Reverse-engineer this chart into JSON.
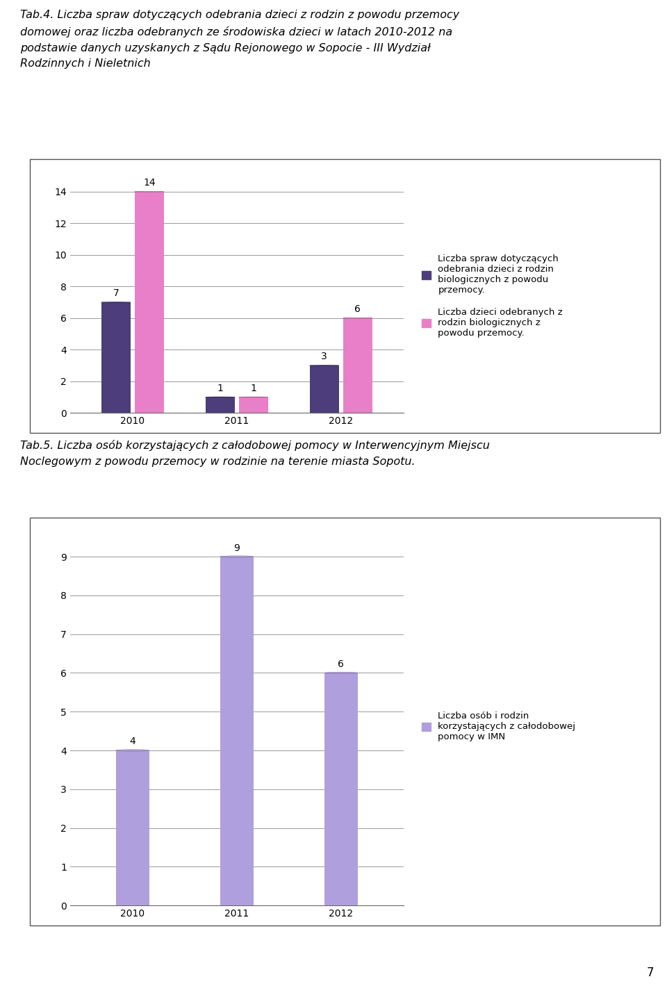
{
  "title1_line1": "Tab.4. Liczba spraw dotyczących odebrania dzieci z rodzin z powodu przemocy",
  "title1_line2": "domowej oraz liczba odebranych ze środowiska dzieci w latach 2010-2012 na",
  "title1_line3": "podstawie danych uzyskanych z Sądu Rejonowego w Sopocie - III Wydział",
  "title1_line4": "Rodzinnych i Nieletnich",
  "chart1_years": [
    "2010",
    "2011",
    "2012"
  ],
  "chart1_series1_values": [
    7,
    1,
    3
  ],
  "chart1_series2_values": [
    14,
    1,
    6
  ],
  "chart1_series1_color": "#4d3d7a",
  "chart1_series2_color": "#e87fc8",
  "chart1_series1_label": "Liczba spraw dotyczących\nodebrania dzieci z rodzin\nbiologicznych z powodu\nprzemocy.",
  "chart1_series2_label": "Liczba dzieci odebranych z\nrodzin biologicznych z\npowodu przemocy.",
  "chart1_ylim_max": 14,
  "chart1_yticks": [
    0,
    2,
    4,
    6,
    8,
    10,
    12,
    14
  ],
  "title2_line1": "Tab.5. Liczba osób korzystających z całodobowej pomocy w Interwencyjnym Miejscu",
  "title2_line2": "Noclegowym z powodu przemocy w rodzinie na terenie miasta Sopotu.",
  "chart2_years": [
    "2010",
    "2011",
    "2012"
  ],
  "chart2_values": [
    4,
    9,
    6
  ],
  "chart2_color": "#b09fdd",
  "chart2_label": "Liczba osób i rodzin\nkorzystających z całodobowej\npomocy w IMN",
  "chart2_ylim_max": 9,
  "chart2_yticks": [
    0,
    1,
    2,
    3,
    4,
    5,
    6,
    7,
    8,
    9
  ],
  "page_number": "7",
  "bg_color": "#ffffff",
  "grid_color": "#999999",
  "text_color": "#000000",
  "title_fontsize": 11.5,
  "tick_fontsize": 10,
  "bar_label_fontsize": 10,
  "legend_fontsize": 9.5
}
